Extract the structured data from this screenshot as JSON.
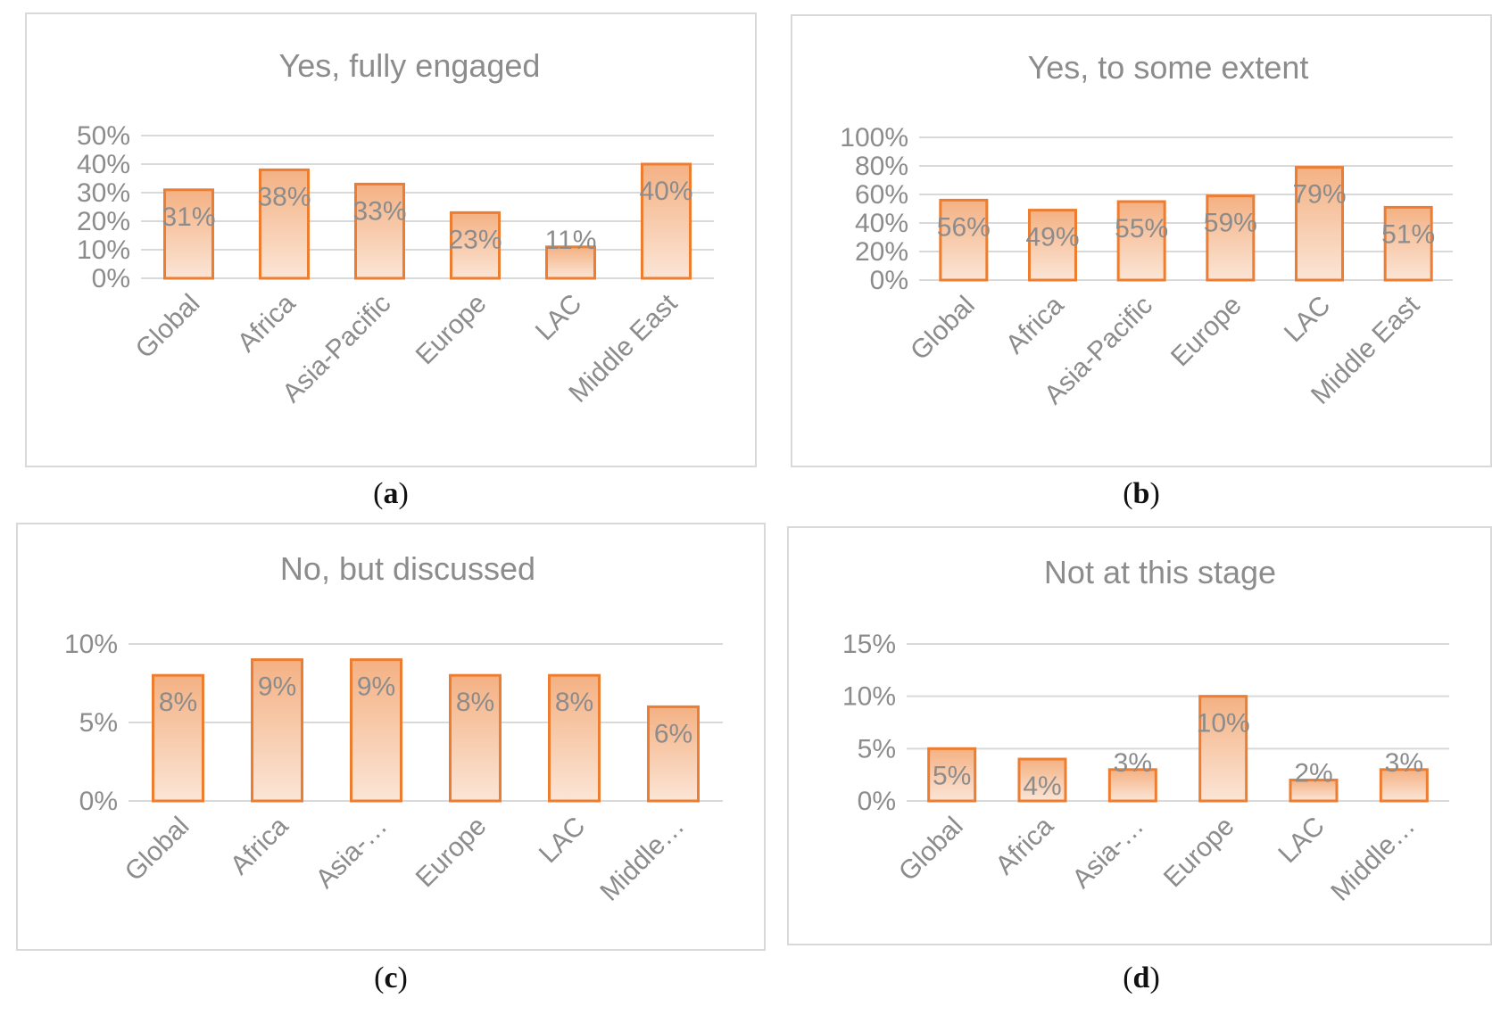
{
  "chart_data": [
    {
      "type": "bar",
      "panel_label": "a",
      "title": "Yes, fully engaged",
      "categories": [
        "Global",
        "Africa",
        "Asia-Pacific",
        "Europe",
        "LAC",
        "Middle East"
      ],
      "values": [
        31,
        38,
        33,
        23,
        11,
        40
      ],
      "data_labels": [
        "31%",
        "38%",
        "33%",
        "23%",
        "11%",
        "40%"
      ],
      "ylim": [
        0,
        50
      ],
      "yticks": [
        0,
        10,
        20,
        30,
        40,
        50
      ],
      "ytick_labels": [
        "0%",
        "10%",
        "20%",
        "30%",
        "40%",
        "50%"
      ],
      "grid": true,
      "xlabel": "",
      "ylabel": ""
    },
    {
      "type": "bar",
      "panel_label": "b",
      "title": "Yes, to some extent",
      "categories": [
        "Global",
        "Africa",
        "Asia-Pacific",
        "Europe",
        "LAC",
        "Middle East"
      ],
      "values": [
        56,
        49,
        55,
        59,
        79,
        51
      ],
      "data_labels": [
        "56%",
        "49%",
        "55%",
        "59%",
        "79%",
        "51%"
      ],
      "ylim": [
        0,
        100
      ],
      "yticks": [
        0,
        20,
        40,
        60,
        80,
        100
      ],
      "ytick_labels": [
        "0%",
        "20%",
        "40%",
        "60%",
        "80%",
        "100%"
      ],
      "grid": true,
      "xlabel": "",
      "ylabel": ""
    },
    {
      "type": "bar",
      "panel_label": "c",
      "title": "No, but discussed",
      "categories": [
        "Global",
        "Africa",
        "Asia-…",
        "Europe",
        "LAC",
        "Middle…"
      ],
      "values": [
        8,
        9,
        9,
        8,
        8,
        6
      ],
      "data_labels": [
        "8%",
        "9%",
        "9%",
        "8%",
        "8%",
        "6%"
      ],
      "ylim": [
        0,
        10
      ],
      "yticks": [
        0,
        5,
        10
      ],
      "ytick_labels": [
        "0%",
        "5%",
        "10%"
      ],
      "grid": true,
      "xlabel": "",
      "ylabel": ""
    },
    {
      "type": "bar",
      "panel_label": "d",
      "title": "Not at this stage",
      "categories": [
        "Global",
        "Africa",
        "Asia-…",
        "Europe",
        "LAC",
        "Middle…"
      ],
      "values": [
        5,
        4,
        3,
        10,
        2,
        3
      ],
      "data_labels": [
        "5%",
        "4%",
        "3%",
        "10%",
        "2%",
        "3%"
      ],
      "ylim": [
        0,
        15
      ],
      "yticks": [
        0,
        5,
        10,
        15
      ],
      "ytick_labels": [
        "0%",
        "5%",
        "10%",
        "15%"
      ],
      "grid": true,
      "xlabel": "",
      "ylabel": ""
    }
  ],
  "colors": {
    "bar_fill_top": "#f4b183",
    "bar_fill_bottom": "#fbe5d6",
    "bar_stroke": "#ed7d31",
    "text": "#8c8c8c",
    "grid": "#d9d9d9"
  }
}
